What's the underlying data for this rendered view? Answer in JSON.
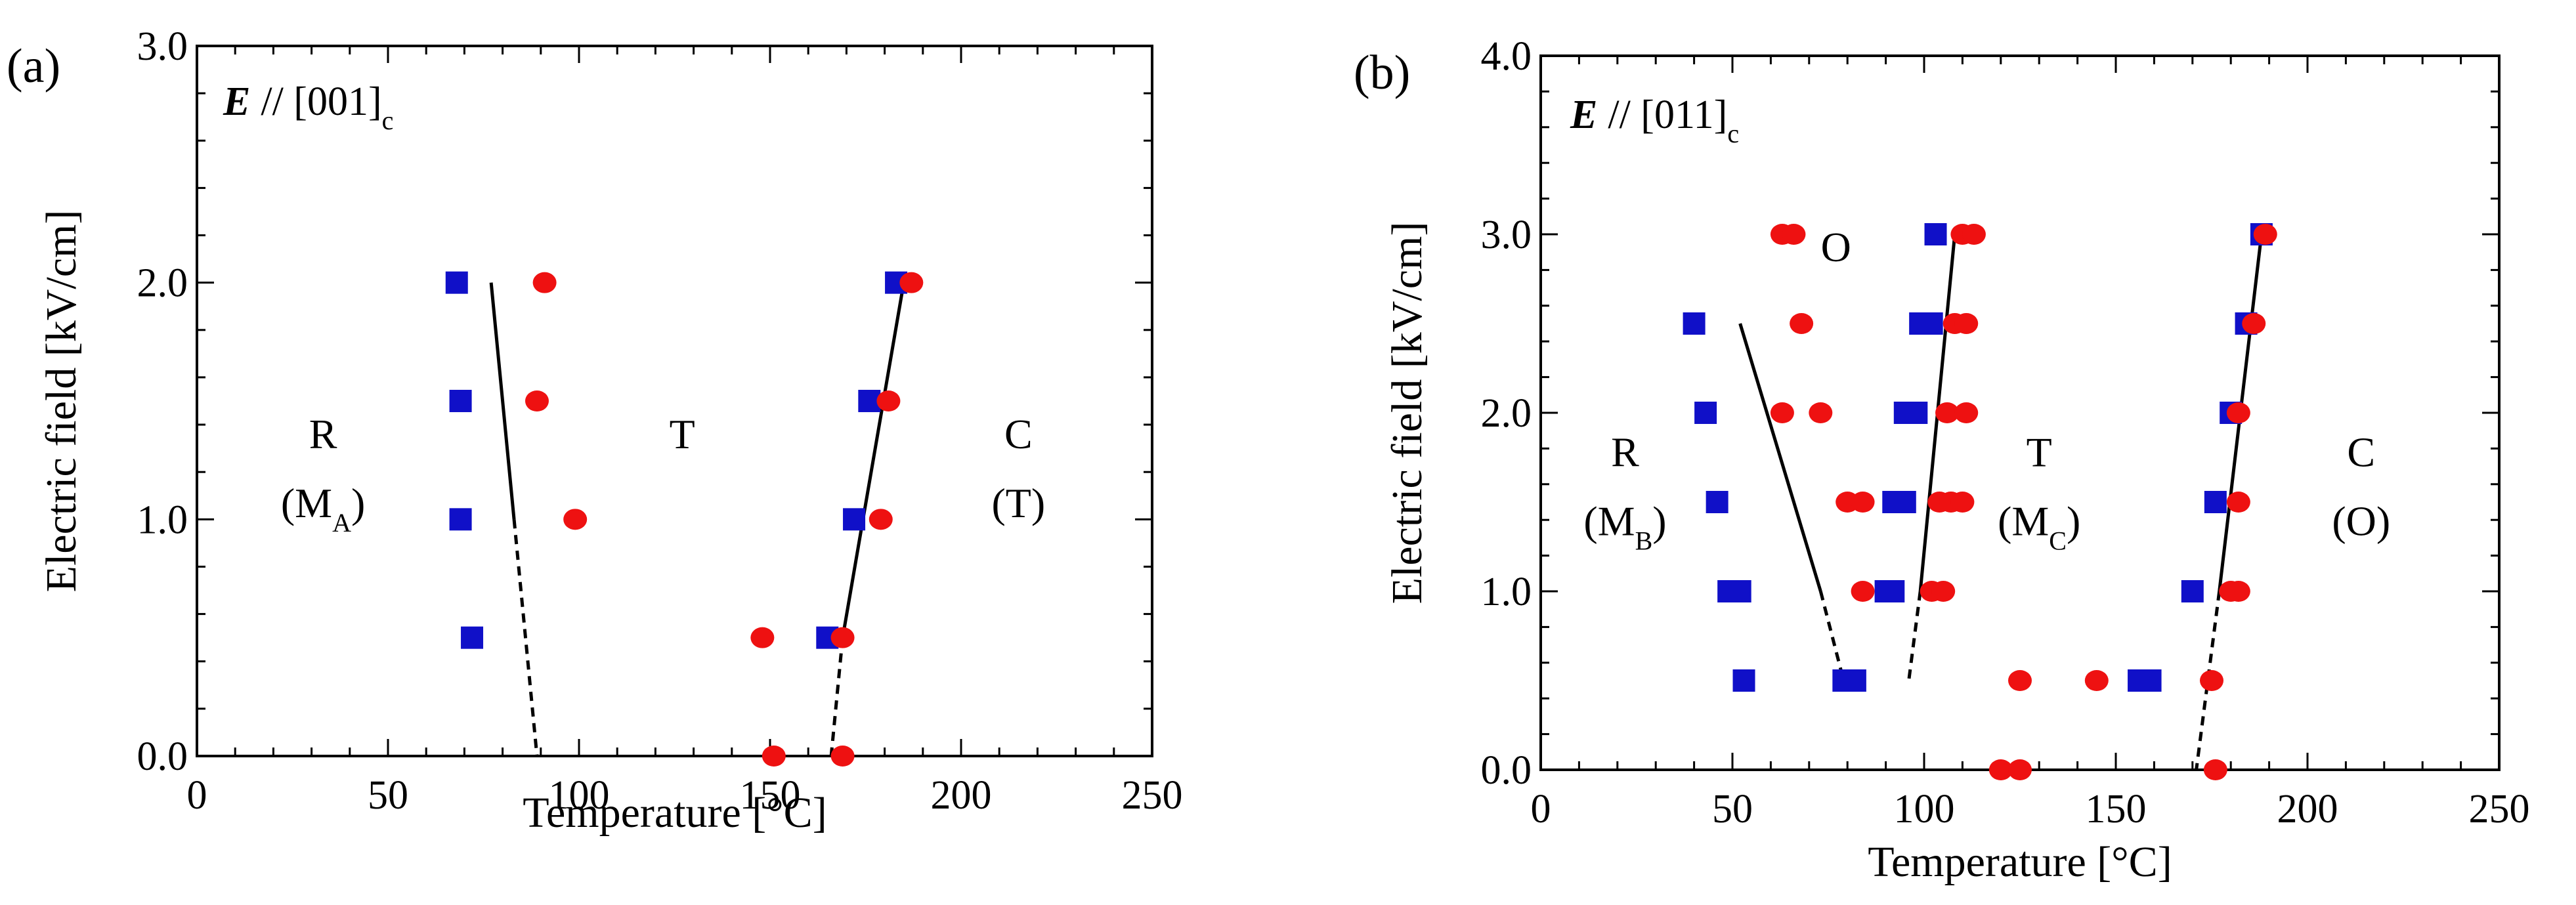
{
  "chart_data": [
    {
      "type": "scatter",
      "panel_label": "(a)",
      "field_direction": {
        "vector": "E",
        "text": "// [001]",
        "subscript": "c"
      },
      "xlabel": "Temperature [°C]",
      "ylabel": "Electric field [kV/cm]",
      "xlim": [
        0,
        250
      ],
      "ylim": [
        0,
        3.0
      ],
      "xticks": [
        0,
        50,
        100,
        150,
        200,
        250
      ],
      "yticks": [
        0.0,
        1.0,
        2.0,
        3.0
      ],
      "xtick_labels": [
        "0",
        "50",
        "100",
        "150",
        "200",
        "250"
      ],
      "ytick_labels": [
        "0.0",
        "1.0",
        "2.0",
        "3.0"
      ],
      "series": [
        {
          "name": "square",
          "marker": "square",
          "color": "#1010c8",
          "points": [
            [
              68,
              2.0
            ],
            [
              69,
              1.5
            ],
            [
              69,
              1.0
            ],
            [
              72,
              0.5
            ],
            [
              165,
              0.5
            ],
            [
              172,
              1.0
            ],
            [
              176,
              1.5
            ],
            [
              183,
              2.0
            ]
          ]
        },
        {
          "name": "circle",
          "marker": "circle",
          "color": "#ee1111",
          "points": [
            [
              91,
              2.0
            ],
            [
              89,
              1.5
            ],
            [
              99,
              1.0
            ],
            [
              148,
              0.5
            ],
            [
              151,
              0.0
            ],
            [
              169,
              0.5
            ],
            [
              169,
              0.0
            ],
            [
              179,
              1.0
            ],
            [
              181,
              1.5
            ],
            [
              187,
              2.0
            ]
          ]
        }
      ],
      "boundaries": [
        {
          "style": "solid",
          "points": [
            [
              77,
              2.0
            ],
            [
              83,
              1.0
            ]
          ]
        },
        {
          "style": "dashed",
          "points": [
            [
              83,
              1.0
            ],
            [
              89,
              0.0
            ]
          ]
        },
        {
          "style": "solid",
          "points": [
            [
              185,
              2.0
            ],
            [
              169,
              0.5
            ]
          ]
        },
        {
          "style": "dashed",
          "points": [
            [
              169,
              0.5
            ],
            [
              166,
              0.0
            ]
          ]
        }
      ],
      "regions": [
        {
          "id": "r",
          "main": "R",
          "paren_main": "M",
          "paren_sub": "A",
          "x": 33,
          "y": 1.3
        },
        {
          "id": "t",
          "main": "T",
          "x": 127,
          "y": 1.3
        },
        {
          "id": "c",
          "main": "C",
          "paren_main": "T",
          "x": 215,
          "y": 1.3
        }
      ]
    },
    {
      "type": "scatter",
      "panel_label": "(b)",
      "field_direction": {
        "vector": "E",
        "text": "// [011]",
        "subscript": "c"
      },
      "xlabel": "Temperature [°C]",
      "ylabel": "Electric field [kV/cm]",
      "xlim": [
        0,
        250
      ],
      "ylim": [
        0,
        4.0
      ],
      "xticks": [
        0,
        50,
        100,
        150,
        200,
        250
      ],
      "yticks": [
        0.0,
        1.0,
        2.0,
        3.0,
        4.0
      ],
      "xtick_labels": [
        "0",
        "50",
        "100",
        "150",
        "200",
        "250"
      ],
      "ytick_labels": [
        "0.0",
        "1.0",
        "2.0",
        "3.0",
        "4.0"
      ],
      "series": [
        {
          "name": "square",
          "marker": "square",
          "color": "#1010c8",
          "points": [
            [
              40,
              2.5
            ],
            [
              43,
              2.0
            ],
            [
              46,
              1.5
            ],
            [
              49,
              1.0
            ],
            [
              52,
              1.0
            ],
            [
              53,
              0.5
            ],
            [
              79,
              0.5
            ],
            [
              82,
              0.5
            ],
            [
              90,
              1.0
            ],
            [
              92,
              1.0
            ],
            [
              92,
              1.5
            ],
            [
              95,
              1.5
            ],
            [
              95,
              2.0
            ],
            [
              98,
              2.0
            ],
            [
              99,
              2.5
            ],
            [
              102,
              2.5
            ],
            [
              103,
              3.0
            ],
            [
              156,
              0.5
            ],
            [
              159,
              0.5
            ],
            [
              170,
              1.0
            ],
            [
              176,
              1.5
            ],
            [
              180,
              2.0
            ],
            [
              184,
              2.5
            ],
            [
              188,
              3.0
            ]
          ]
        },
        {
          "name": "circle",
          "marker": "circle",
          "color": "#ee1111",
          "points": [
            [
              63,
              3.0
            ],
            [
              66,
              3.0
            ],
            [
              68,
              2.5
            ],
            [
              63,
              2.0
            ],
            [
              73,
              2.0
            ],
            [
              80,
              1.5
            ],
            [
              84,
              1.5
            ],
            [
              84,
              1.0
            ],
            [
              102,
              1.0
            ],
            [
              105,
              1.0
            ],
            [
              104,
              1.5
            ],
            [
              107,
              1.5
            ],
            [
              110,
              1.5
            ],
            [
              106,
              2.0
            ],
            [
              111,
              2.0
            ],
            [
              108,
              2.5
            ],
            [
              111,
              2.5
            ],
            [
              110,
              3.0
            ],
            [
              113,
              3.0
            ],
            [
              120,
              0.0
            ],
            [
              125,
              0.0
            ],
            [
              125,
              0.5
            ],
            [
              145,
              0.5
            ],
            [
              175,
              0.5
            ],
            [
              176,
              0.0
            ],
            [
              180,
              1.0
            ],
            [
              182,
              1.0
            ],
            [
              182,
              1.5
            ],
            [
              182,
              2.0
            ],
            [
              186,
              2.5
            ],
            [
              189,
              3.0
            ]
          ]
        }
      ],
      "boundaries": [
        {
          "style": "solid",
          "points": [
            [
              52,
              2.5
            ],
            [
              73,
              1.0
            ]
          ]
        },
        {
          "style": "dashed",
          "points": [
            [
              73,
              1.0
            ],
            [
              79,
              0.5
            ]
          ]
        },
        {
          "style": "solid",
          "points": [
            [
              108,
              3.0
            ],
            [
              99,
              1.0
            ]
          ]
        },
        {
          "style": "dashed",
          "points": [
            [
              99,
              1.0
            ],
            [
              96,
              0.5
            ]
          ]
        },
        {
          "style": "solid",
          "points": [
            [
              188,
              3.0
            ],
            [
              177,
              1.0
            ]
          ]
        },
        {
          "style": "dashed",
          "points": [
            [
              177,
              1.0
            ],
            [
              171,
              0.0
            ]
          ]
        }
      ],
      "regions": [
        {
          "id": "o",
          "main": "O",
          "x": 77,
          "y": 2.85
        },
        {
          "id": "r",
          "main": "R",
          "paren_main": "M",
          "paren_sub": "B",
          "x": 22,
          "y": 1.7
        },
        {
          "id": "t",
          "main": "T",
          "paren_main": "M",
          "paren_sub": "C",
          "x": 130,
          "y": 1.7
        },
        {
          "id": "c",
          "main": "C",
          "paren_main": "O",
          "x": 214,
          "y": 1.7
        }
      ]
    }
  ]
}
